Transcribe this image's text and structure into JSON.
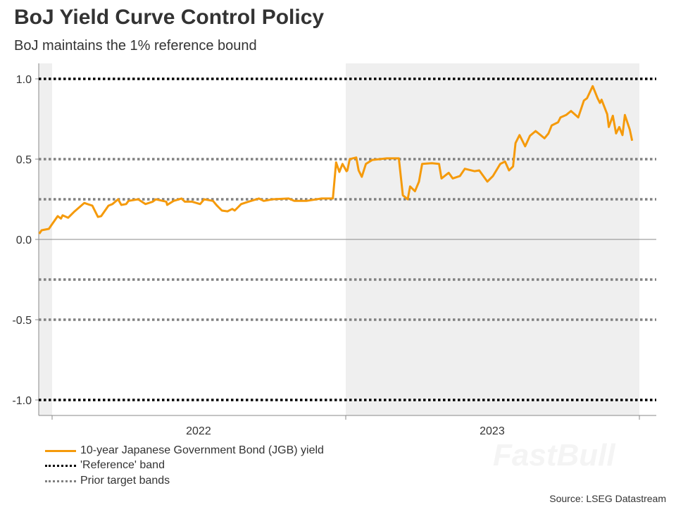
{
  "title": "BoJ Yield Curve Control Policy",
  "subtitle": "BoJ maintains the 1% reference bound",
  "source": "Source: LSEG Datastream",
  "watermark": "FastBull",
  "colors": {
    "yield": "#F59A0B",
    "reference": "#000000",
    "prior": "#808080",
    "shade": "#EFEFEF"
  },
  "chart_data": {
    "type": "line",
    "title": "BoJ Yield Curve Control Policy",
    "subtitle": "BoJ maintains the 1% reference bound",
    "xlabel": "",
    "ylabel": "",
    "ylim": [
      -1.1,
      1.1
    ],
    "xlim": [
      "2021-12-15",
      "2024-01-05"
    ],
    "y_ticks": [
      "1.0",
      "0.5",
      "0.0",
      "-0.5",
      "-1.0"
    ],
    "x_ticks": [
      "2022",
      "2023"
    ],
    "grid": false,
    "shaded_periods": [
      [
        "2021-12-15",
        "2022-01-01"
      ],
      [
        "2023-01-01",
        "2024-01-01"
      ]
    ],
    "legend_position": "bottom-left",
    "reference_lines": [
      {
        "name": "'Reference' band",
        "values": [
          1.0,
          -1.0
        ],
        "style": "dotted",
        "color": "#000000"
      },
      {
        "name": "Prior target bands",
        "values": [
          0.5,
          0.25,
          -0.25,
          -0.5
        ],
        "style": "dotted",
        "color": "#808080"
      }
    ],
    "series": [
      {
        "name": "10-year Japanese Government Bond (JGB) yield",
        "color": "#F59A0B",
        "points": [
          [
            "2021-12-16",
            0.035
          ],
          [
            "2021-12-19",
            0.057
          ],
          [
            "2021-12-28",
            0.066
          ],
          [
            "2021-12-31",
            0.088
          ],
          [
            "2022-01-08",
            0.145
          ],
          [
            "2022-01-12",
            0.13
          ],
          [
            "2022-01-14",
            0.15
          ],
          [
            "2022-01-21",
            0.135
          ],
          [
            "2022-01-29",
            0.175
          ],
          [
            "2022-02-10",
            0.227
          ],
          [
            "2022-02-14",
            0.22
          ],
          [
            "2022-02-20",
            0.21
          ],
          [
            "2022-02-27",
            0.14
          ],
          [
            "2022-03-03",
            0.145
          ],
          [
            "2022-03-12",
            0.21
          ],
          [
            "2022-03-17",
            0.22
          ],
          [
            "2022-03-24",
            0.25
          ],
          [
            "2022-03-28",
            0.215
          ],
          [
            "2022-04-03",
            0.22
          ],
          [
            "2022-04-06",
            0.24
          ],
          [
            "2022-04-18",
            0.25
          ],
          [
            "2022-04-27",
            0.22
          ],
          [
            "2022-05-06",
            0.235
          ],
          [
            "2022-05-10",
            0.25
          ],
          [
            "2022-05-23",
            0.235
          ],
          [
            "2022-05-24",
            0.215
          ],
          [
            "2022-06-01",
            0.24
          ],
          [
            "2022-06-11",
            0.255
          ],
          [
            "2022-06-15",
            0.235
          ],
          [
            "2022-06-24",
            0.235
          ],
          [
            "2022-07-04",
            0.22
          ],
          [
            "2022-07-09",
            0.25
          ],
          [
            "2022-07-20",
            0.24
          ],
          [
            "2022-07-25",
            0.21
          ],
          [
            "2022-07-31",
            0.18
          ],
          [
            "2022-08-07",
            0.175
          ],
          [
            "2022-08-13",
            0.19
          ],
          [
            "2022-08-16",
            0.18
          ],
          [
            "2022-08-24",
            0.22
          ],
          [
            "2022-09-02",
            0.235
          ],
          [
            "2022-09-15",
            0.255
          ],
          [
            "2022-09-21",
            0.24
          ],
          [
            "2022-10-02",
            0.25
          ],
          [
            "2022-10-22",
            0.255
          ],
          [
            "2022-10-29",
            0.24
          ],
          [
            "2022-11-13",
            0.24
          ],
          [
            "2022-12-02",
            0.255
          ],
          [
            "2022-12-16",
            0.255
          ],
          [
            "2022-12-20",
            0.48
          ],
          [
            "2022-12-24",
            0.42
          ],
          [
            "2022-12-28",
            0.47
          ],
          [
            "2023-01-02",
            0.425
          ],
          [
            "2023-01-03",
            0.43
          ],
          [
            "2023-01-06",
            0.5
          ],
          [
            "2023-01-14",
            0.51
          ],
          [
            "2023-01-17",
            0.43
          ],
          [
            "2023-01-21",
            0.39
          ],
          [
            "2023-01-26",
            0.47
          ],
          [
            "2023-02-03",
            0.495
          ],
          [
            "2023-02-21",
            0.505
          ],
          [
            "2023-03-08",
            0.505
          ],
          [
            "2023-03-13",
            0.275
          ],
          [
            "2023-03-19",
            0.25
          ],
          [
            "2023-03-22",
            0.33
          ],
          [
            "2023-03-28",
            0.3
          ],
          [
            "2023-04-02",
            0.36
          ],
          [
            "2023-04-06",
            0.47
          ],
          [
            "2023-04-18",
            0.475
          ],
          [
            "2023-04-27",
            0.47
          ],
          [
            "2023-04-30",
            0.38
          ],
          [
            "2023-05-09",
            0.415
          ],
          [
            "2023-05-14",
            0.38
          ],
          [
            "2023-05-23",
            0.395
          ],
          [
            "2023-05-29",
            0.44
          ],
          [
            "2023-06-10",
            0.425
          ],
          [
            "2023-06-16",
            0.43
          ],
          [
            "2023-06-26",
            0.36
          ],
          [
            "2023-07-03",
            0.395
          ],
          [
            "2023-07-12",
            0.47
          ],
          [
            "2023-07-18",
            0.485
          ],
          [
            "2023-07-23",
            0.43
          ],
          [
            "2023-07-28",
            0.455
          ],
          [
            "2023-07-31",
            0.6
          ],
          [
            "2023-08-05",
            0.65
          ],
          [
            "2023-08-12",
            0.58
          ],
          [
            "2023-08-18",
            0.645
          ],
          [
            "2023-08-25",
            0.675
          ],
          [
            "2023-09-05",
            0.63
          ],
          [
            "2023-09-10",
            0.66
          ],
          [
            "2023-09-14",
            0.71
          ],
          [
            "2023-09-22",
            0.73
          ],
          [
            "2023-09-25",
            0.76
          ],
          [
            "2023-10-02",
            0.775
          ],
          [
            "2023-10-08",
            0.8
          ],
          [
            "2023-10-17",
            0.76
          ],
          [
            "2023-10-24",
            0.865
          ],
          [
            "2023-10-28",
            0.88
          ],
          [
            "2023-11-04",
            0.955
          ],
          [
            "2023-11-10",
            0.88
          ],
          [
            "2023-11-13",
            0.85
          ],
          [
            "2023-11-15",
            0.87
          ],
          [
            "2023-11-22",
            0.78
          ],
          [
            "2023-11-24",
            0.7
          ],
          [
            "2023-11-29",
            0.77
          ],
          [
            "2023-12-03",
            0.66
          ],
          [
            "2023-12-07",
            0.7
          ],
          [
            "2023-12-11",
            0.65
          ],
          [
            "2023-12-14",
            0.775
          ],
          [
            "2023-12-20",
            0.685
          ],
          [
            "2023-12-23",
            0.615
          ]
        ]
      }
    ]
  },
  "legend": [
    {
      "label": "10-year Japanese Government Bond (JGB) yield"
    },
    {
      "label": "'Reference' band"
    },
    {
      "label": "Prior target bands"
    }
  ]
}
